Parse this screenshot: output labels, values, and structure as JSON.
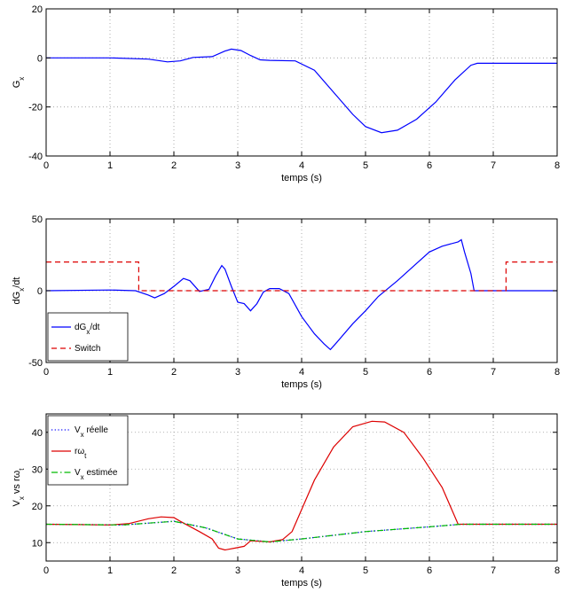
{
  "chart_data": [
    {
      "type": "line",
      "xlabel": "temps (s)",
      "ylabel_main": "G",
      "ylabel_sub": "x",
      "xlim": [
        0,
        8
      ],
      "ylim": [
        -40,
        20
      ],
      "xticks": [
        "0",
        "1",
        "2",
        "3",
        "4",
        "5",
        "6",
        "7",
        "8"
      ],
      "yticks": [
        "-40",
        "-20",
        "0",
        "20"
      ],
      "ytick_values": [
        -40,
        -20,
        0,
        20
      ],
      "grid": true,
      "series": [
        {
          "color": "#0000ff",
          "style": "solid",
          "points": [
            [
              0,
              0
            ],
            [
              1,
              0
            ],
            [
              1.6,
              -0.5
            ],
            [
              1.9,
              -1.6
            ],
            [
              2.1,
              -1.2
            ],
            [
              2.3,
              0.2
            ],
            [
              2.6,
              0.5
            ],
            [
              2.8,
              2.8
            ],
            [
              2.9,
              3.6
            ],
            [
              3.05,
              3.0
            ],
            [
              3.2,
              1.0
            ],
            [
              3.35,
              -0.8
            ],
            [
              3.5,
              -1.0
            ],
            [
              3.9,
              -1.2
            ],
            [
              4.2,
              -5
            ],
            [
              4.5,
              -14
            ],
            [
              4.8,
              -23
            ],
            [
              5.0,
              -28
            ],
            [
              5.25,
              -30.5
            ],
            [
              5.5,
              -29.5
            ],
            [
              5.8,
              -25
            ],
            [
              6.1,
              -18
            ],
            [
              6.4,
              -9
            ],
            [
              6.65,
              -3
            ],
            [
              6.75,
              -2.2
            ],
            [
              8,
              -2.2
            ]
          ]
        }
      ]
    },
    {
      "type": "line",
      "xlabel": "temps (s)",
      "ylabel_main": "dG",
      "ylabel_sub": "x",
      "ylabel_tail": "/dt",
      "xlim": [
        0,
        8
      ],
      "ylim": [
        -50,
        50
      ],
      "xticks": [
        "0",
        "1",
        "2",
        "3",
        "4",
        "5",
        "6",
        "7",
        "8"
      ],
      "yticks": [
        "-50",
        "0",
        "50"
      ],
      "ytick_values": [
        -50,
        0,
        50
      ],
      "grid": true,
      "legend": {
        "placement": "lower-left",
        "entries": [
          {
            "main": "dG",
            "sub": "x",
            "tail": "/dt",
            "color": "#0000ff",
            "style": "solid"
          },
          {
            "main": "Switch",
            "sub": "",
            "tail": "",
            "color": "#dd0000",
            "style": "dashed"
          }
        ]
      },
      "series": [
        {
          "color": "#0000ff",
          "style": "solid",
          "points": [
            [
              0,
              0
            ],
            [
              1,
              0.5
            ],
            [
              1.4,
              0
            ],
            [
              1.6,
              -3
            ],
            [
              1.7,
              -5
            ],
            [
              1.85,
              -2
            ],
            [
              2.0,
              3
            ],
            [
              2.15,
              8.5
            ],
            [
              2.25,
              7
            ],
            [
              2.4,
              -0.5
            ],
            [
              2.55,
              1
            ],
            [
              2.65,
              10
            ],
            [
              2.75,
              17.5
            ],
            [
              2.8,
              15
            ],
            [
              2.9,
              3
            ],
            [
              3.0,
              -8
            ],
            [
              3.1,
              -9
            ],
            [
              3.2,
              -14
            ],
            [
              3.3,
              -9
            ],
            [
              3.4,
              -1
            ],
            [
              3.5,
              1.5
            ],
            [
              3.65,
              1.5
            ],
            [
              3.8,
              -2
            ],
            [
              4.0,
              -18
            ],
            [
              4.2,
              -30
            ],
            [
              4.35,
              -37
            ],
            [
              4.45,
              -41
            ],
            [
              4.55,
              -36
            ],
            [
              4.8,
              -23
            ],
            [
              5.0,
              -14
            ],
            [
              5.2,
              -4
            ],
            [
              5.5,
              7
            ],
            [
              5.8,
              19
            ],
            [
              6.0,
              27
            ],
            [
              6.2,
              31
            ],
            [
              6.45,
              34
            ],
            [
              6.5,
              35.5
            ],
            [
              6.55,
              27
            ],
            [
              6.65,
              12
            ],
            [
              6.7,
              0
            ],
            [
              6.8,
              0
            ],
            [
              8,
              0
            ]
          ]
        },
        {
          "color": "#dd0000",
          "style": "dashed",
          "points": [
            [
              0,
              20
            ],
            [
              1.45,
              20
            ],
            [
              1.45,
              0
            ],
            [
              7.2,
              0
            ],
            [
              7.2,
              20
            ],
            [
              8,
              20
            ]
          ]
        }
      ]
    },
    {
      "type": "line",
      "xlabel": "temps (s)",
      "ylabel_main": "V",
      "ylabel_sub": "x",
      "ylabel_tail": " vs rω",
      "ylabel_sub2": "t",
      "xlim": [
        0,
        8
      ],
      "ylim": [
        5,
        45
      ],
      "xticks": [
        "0",
        "1",
        "2",
        "3",
        "4",
        "5",
        "6",
        "7",
        "8"
      ],
      "yticks": [
        "10",
        "20",
        "30",
        "40"
      ],
      "ytick_values": [
        10,
        20,
        30,
        40
      ],
      "grid": true,
      "legend": {
        "placement": "top-left",
        "entries": [
          {
            "main": "V",
            "sub": "x",
            "tail": " réelle",
            "color": "#0000ff",
            "style": "dotted"
          },
          {
            "main": "rω",
            "sub": "t",
            "tail": "",
            "color": "#dd0000",
            "style": "solid"
          },
          {
            "main": "V",
            "sub": "x",
            "tail": " estimée",
            "color": "#00bb00",
            "style": "dashdot"
          }
        ]
      },
      "series": [
        {
          "color": "#0000ff",
          "style": "dotted",
          "points": [
            [
              0,
              15
            ],
            [
              1.2,
              14.8
            ],
            [
              2.0,
              15.8
            ],
            [
              2.5,
              14
            ],
            [
              3.0,
              11
            ],
            [
              3.5,
              10.2
            ],
            [
              4.0,
              11
            ],
            [
              5.0,
              13
            ],
            [
              6.0,
              14.3
            ],
            [
              6.5,
              15
            ],
            [
              8,
              15
            ]
          ]
        },
        {
          "color": "#dd0000",
          "style": "solid",
          "points": [
            [
              0,
              15
            ],
            [
              1.0,
              14.8
            ],
            [
              1.3,
              15.2
            ],
            [
              1.6,
              16.5
            ],
            [
              1.8,
              17
            ],
            [
              2.0,
              16.8
            ],
            [
              2.1,
              15.8
            ],
            [
              2.4,
              13
            ],
            [
              2.6,
              11
            ],
            [
              2.7,
              8.5
            ],
            [
              2.8,
              8
            ],
            [
              2.95,
              8.5
            ],
            [
              3.1,
              9
            ],
            [
              3.2,
              10.5
            ],
            [
              3.5,
              10.2
            ],
            [
              3.7,
              10.8
            ],
            [
              3.85,
              13
            ],
            [
              4.0,
              19
            ],
            [
              4.2,
              27
            ],
            [
              4.5,
              36
            ],
            [
              4.8,
              41.5
            ],
            [
              5.1,
              43
            ],
            [
              5.3,
              42.8
            ],
            [
              5.6,
              40
            ],
            [
              5.9,
              33
            ],
            [
              6.2,
              25
            ],
            [
              6.45,
              15
            ],
            [
              8,
              15
            ]
          ]
        },
        {
          "color": "#00bb00",
          "style": "dashdot",
          "points": [
            [
              0,
              15
            ],
            [
              1.2,
              14.8
            ],
            [
              2.0,
              15.8
            ],
            [
              2.5,
              14
            ],
            [
              3.0,
              11
            ],
            [
              3.5,
              10.2
            ],
            [
              4.0,
              11
            ],
            [
              5.0,
              13
            ],
            [
              6.0,
              14.3
            ],
            [
              6.5,
              15
            ],
            [
              8,
              15
            ]
          ]
        }
      ]
    }
  ]
}
